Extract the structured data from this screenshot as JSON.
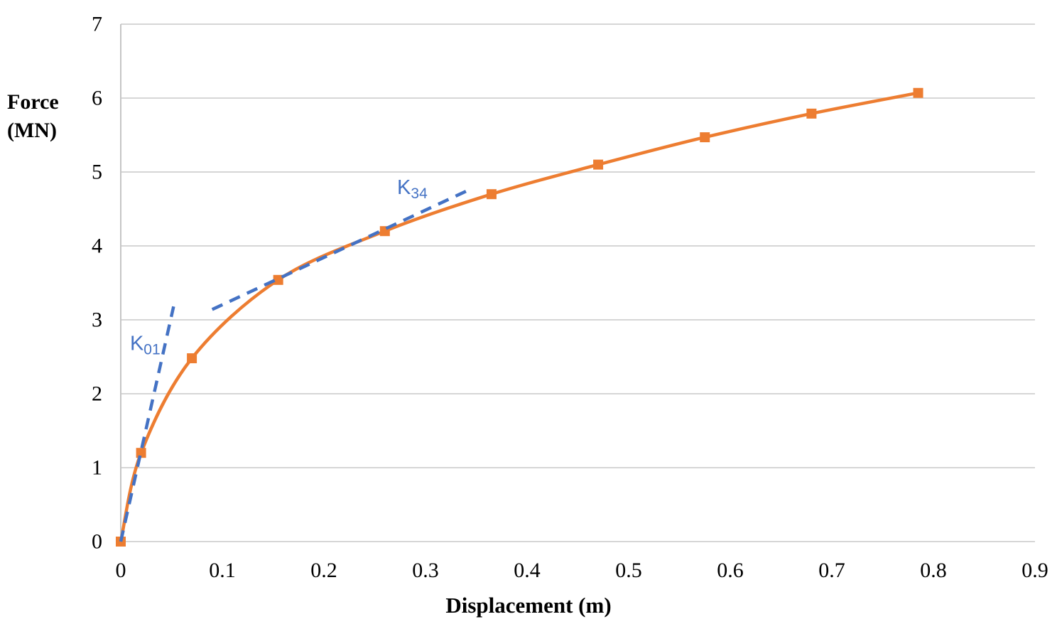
{
  "figure": {
    "y_axis": {
      "label_line1": "Force",
      "label_line2": "(MN)"
    },
    "x_axis": {
      "label": "Displacement (m)"
    }
  },
  "chart_data": {
    "type": "line",
    "title": "",
    "xlabel": "Displacement (m)",
    "ylabel": "Force (MN)",
    "xlim": [
      0,
      0.9
    ],
    "ylim": [
      0,
      7
    ],
    "x_ticks": [
      0,
      0.1,
      0.2,
      0.3,
      0.4,
      0.5,
      0.6,
      0.7,
      0.8,
      0.9
    ],
    "x_tick_labels": [
      "0",
      "0.1",
      "0.2",
      "0.3",
      "0.4",
      "0.5",
      "0.6",
      "0.7",
      "0.8",
      "0.9"
    ],
    "y_ticks": [
      0,
      1,
      2,
      3,
      4,
      5,
      6,
      7
    ],
    "y_tick_labels": [
      "0",
      "1",
      "2",
      "3",
      "4",
      "5",
      "6",
      "7"
    ],
    "grid": "horizontal-only",
    "legend_position": "none",
    "series": [
      {
        "name": "force-displacement-curve",
        "type": "smooth-line-with-square-markers",
        "color": "#ED7D31",
        "points": [
          [
            0,
            0
          ],
          [
            0.02,
            1.2
          ],
          [
            0.07,
            2.48
          ],
          [
            0.155,
            3.54
          ],
          [
            0.26,
            4.2
          ],
          [
            0.365,
            4.7
          ],
          [
            0.47,
            5.1
          ],
          [
            0.575,
            5.47
          ],
          [
            0.68,
            5.79
          ],
          [
            0.785,
            6.07
          ]
        ]
      },
      {
        "name": "k01-tangent-line",
        "type": "dashed-line",
        "color": "#4472C4",
        "points": [
          [
            0,
            0
          ],
          [
            0.052,
            3.18
          ]
        ]
      },
      {
        "name": "k34-tangent-line",
        "type": "dashed-line",
        "color": "#4472C4",
        "points": [
          [
            0.09,
            3.14
          ],
          [
            0.34,
            4.74
          ]
        ]
      }
    ],
    "annotations": [
      {
        "main": "K",
        "sub": "01",
        "x": 0.024,
        "y": 2.68,
        "color": "#4472C4"
      },
      {
        "main": "K",
        "sub": "34",
        "x": 0.287,
        "y": 4.79,
        "color": "#4472C4"
      }
    ],
    "colors": {
      "curve": "#ED7D31",
      "tangent": "#4472C4",
      "gridline": "#D6D6D6",
      "axis_line": "#C6C6C6",
      "text": "#000000"
    }
  }
}
